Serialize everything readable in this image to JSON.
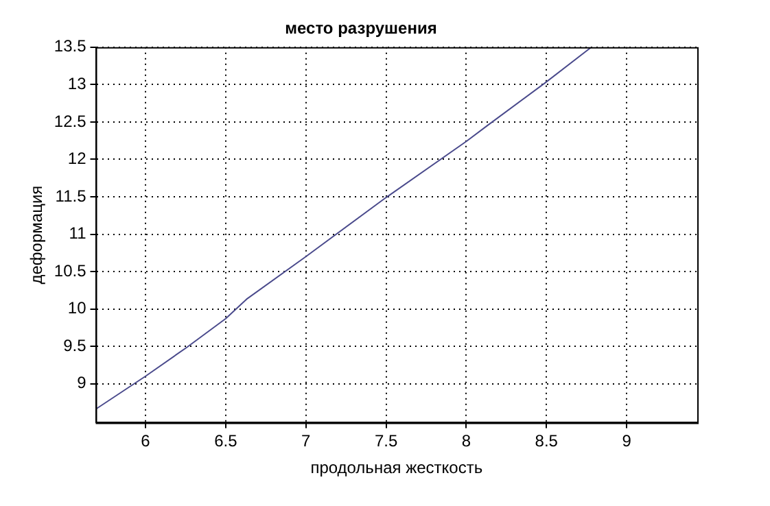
{
  "chart_data": {
    "type": "line",
    "title": "место разрушения",
    "xlabel": "продольная жесткость",
    "ylabel": "деформация",
    "x": [
      5.69,
      6,
      6.26,
      6.5,
      6.63,
      7,
      7.5,
      8,
      8.13,
      8.49,
      8.78
    ],
    "series": [
      {
        "color": "#4a4a8c",
        "values": [
          8.66,
          9.1,
          9.49,
          9.87,
          10.13,
          10.7,
          11.49,
          12.24,
          12.45,
          13.02,
          13.5
        ]
      }
    ],
    "xlim": [
      5.69,
      9.44
    ],
    "xticks": [
      6,
      6.5,
      7,
      7.5,
      8,
      8.5,
      9
    ],
    "ylim": [
      8.48,
      13.5
    ],
    "yticks": [
      9,
      9.5,
      10,
      10.5,
      11,
      11.5,
      12,
      12.5,
      13,
      13.5
    ],
    "grid": true,
    "legend": false,
    "marker": "none",
    "line_style": "solid"
  }
}
